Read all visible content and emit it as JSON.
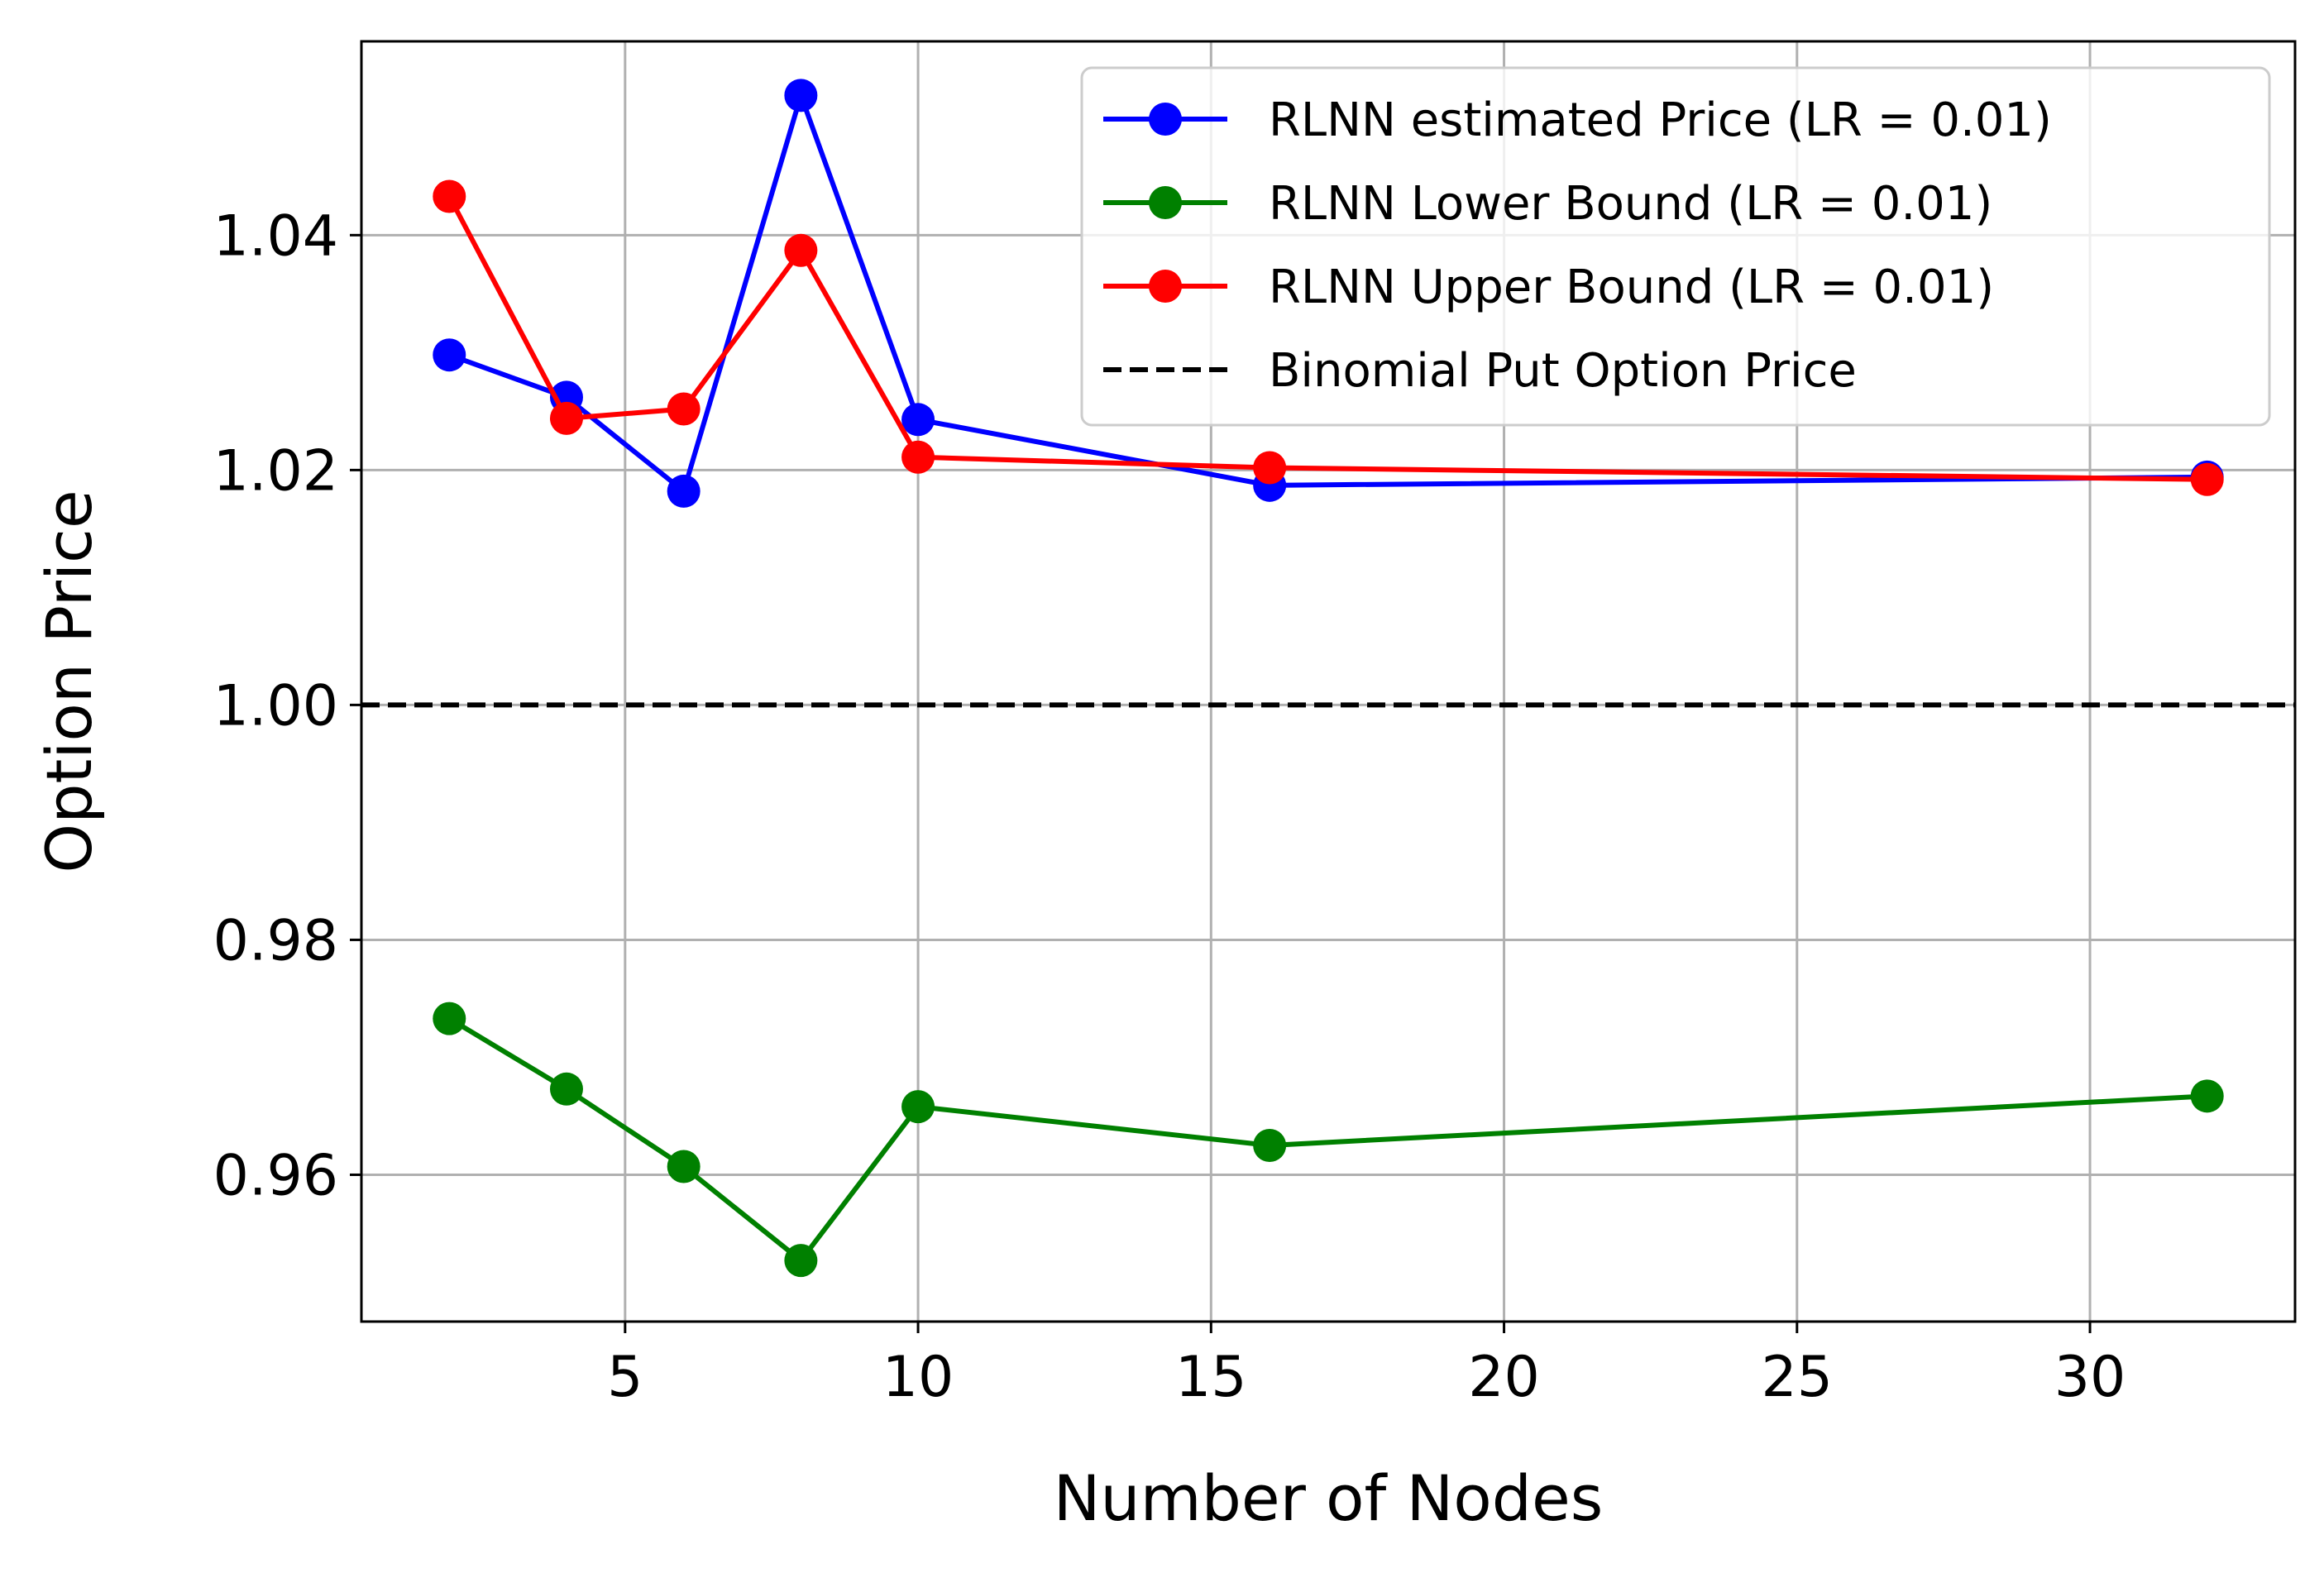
{
  "chart_data": {
    "type": "line",
    "title": "",
    "xlabel": "Number of Nodes",
    "ylabel": "Option Price",
    "xlim": [
      0.5,
      33.5
    ],
    "ylim": [
      0.9475,
      1.0565
    ],
    "xticks": [
      5,
      10,
      15,
      20,
      25,
      30
    ],
    "xtick_labels": [
      "5",
      "10",
      "15",
      "20",
      "25",
      "30"
    ],
    "yticks": [
      0.96,
      0.98,
      1.0,
      1.02,
      1.04
    ],
    "ytick_labels": [
      "0.96",
      "0.98",
      "1.00",
      "1.02",
      "1.04"
    ],
    "grid": true,
    "legend_position": "top-right",
    "x": [
      2,
      4,
      6,
      8,
      10,
      16,
      32
    ],
    "series": [
      {
        "name": "RLNN estimated Price (LR = 0.01)",
        "color": "#0000ff",
        "marker": "circle",
        "line": "solid",
        "values": [
          1.0298,
          1.0262,
          1.0182,
          1.0519,
          1.0243,
          1.0187,
          1.0194
        ]
      },
      {
        "name": "RLNN Lower Bound (LR = 0.01)",
        "color": "#008000",
        "marker": "circle",
        "line": "solid",
        "values": [
          0.9733,
          0.9673,
          0.9607,
          0.9527,
          0.9658,
          0.9625,
          0.9667
        ]
      },
      {
        "name": "RLNN Upper Bound (LR = 0.01)",
        "color": "#ff0000",
        "marker": "circle",
        "line": "solid",
        "values": [
          1.0433,
          1.0244,
          1.0252,
          1.0387,
          1.0211,
          1.0202,
          1.0192
        ]
      }
    ],
    "reference_lines": [
      {
        "name": "Binomial Put Option Price",
        "y": 1.0,
        "color": "#000000",
        "line": "dashed"
      }
    ]
  }
}
